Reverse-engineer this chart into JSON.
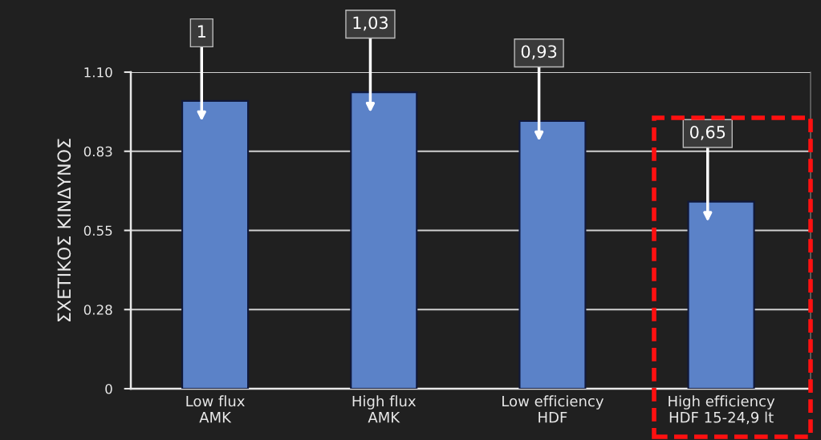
{
  "chart_data": {
    "type": "bar",
    "ylabel": "ΣΧΕΤΙΚΟΣ ΚΙΝΔΥΝΟΣ",
    "categories": [
      "Low flux\nAMK",
      "High flux\nAMK",
      "Low efficiency\nHDF",
      "High efficiency\nHDF 15-24,9 lt"
    ],
    "values": [
      1,
      1.03,
      0.93,
      0.65
    ],
    "value_labels": [
      "1",
      "1,03",
      "0,93",
      "0,65"
    ],
    "color": "#5b82c8",
    "ylim": [
      0,
      1.1
    ],
    "yticks": [
      0,
      {
        "value": 0.275,
        "label": "0.28"
      },
      0.55,
      {
        "value": 0.825,
        "label": "0.83"
      },
      {
        "value": 1.1,
        "label": "1.10"
      }
    ],
    "grid": "y"
  }
}
